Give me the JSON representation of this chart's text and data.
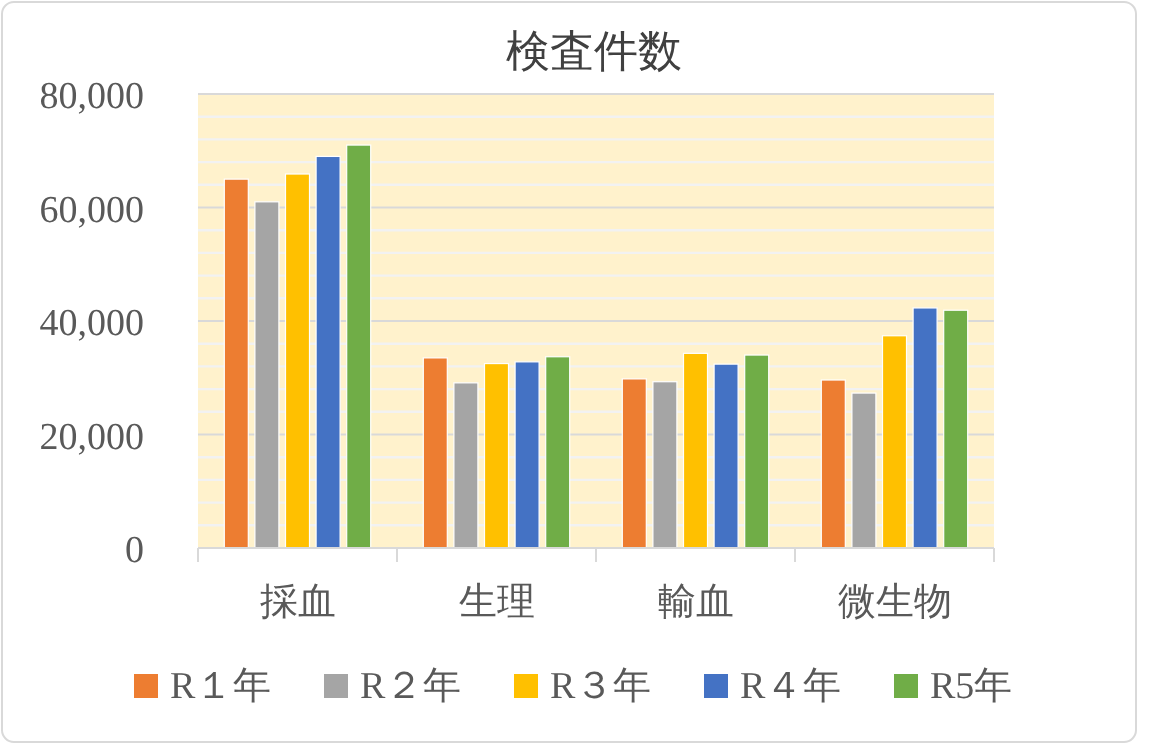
{
  "chart_data": {
    "type": "bar",
    "title": "検査件数",
    "categories": [
      "採血",
      "生理",
      "輸血",
      "微生物"
    ],
    "series": [
      {
        "name": "R１年",
        "color": "#ed7d31",
        "values": [
          65000,
          33500,
          29800,
          29600
        ]
      },
      {
        "name": "R２年",
        "color": "#a5a5a5",
        "values": [
          61000,
          29100,
          29300,
          27300
        ]
      },
      {
        "name": "R３年",
        "color": "#ffc000",
        "values": [
          65900,
          32500,
          34300,
          37400
        ]
      },
      {
        "name": "R４年",
        "color": "#4472c4",
        "values": [
          69000,
          32800,
          32400,
          42300
        ]
      },
      {
        "name": "R5年",
        "color": "#70ad47",
        "values": [
          71000,
          33700,
          34000,
          41900
        ]
      }
    ],
    "ylim": [
      0,
      80000
    ],
    "yticks": [
      {
        "value": 0,
        "label": "0"
      },
      {
        "value": 20000,
        "label": "20,000"
      },
      {
        "value": 40000,
        "label": "40,000"
      },
      {
        "value": 60000,
        "label": "60,000"
      },
      {
        "value": 80000,
        "label": "80,000"
      }
    ],
    "grid": "y",
    "legend": "bottom"
  }
}
